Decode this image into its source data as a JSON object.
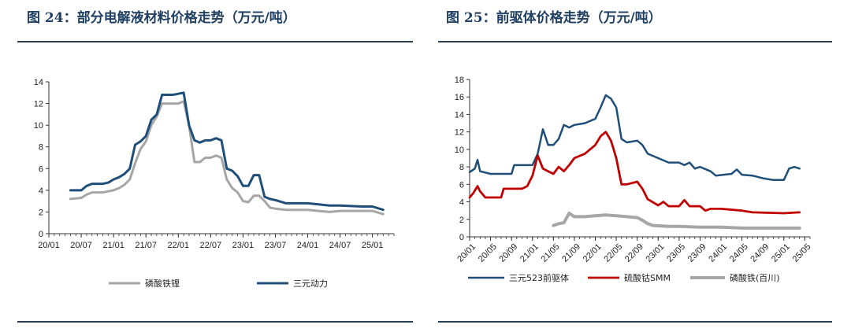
{
  "figures": {
    "left_title": "图 24：部分电解液材料价格走势（万元/吨）",
    "right_title": "图 25：前驱体价格走势（万元/吨）"
  },
  "colors": {
    "navy": "#1f4e79",
    "gray": "#a6a6a6",
    "red": "#c00000",
    "title": "#1f3f63"
  },
  "chart_data": [
    {
      "type": "line",
      "ylim": [
        0,
        14
      ],
      "yticks": [
        "0",
        "2",
        "4",
        "6",
        "8",
        "10",
        "12",
        "14"
      ],
      "xlim": [
        0,
        64
      ],
      "xtick_labels": [
        "20/01",
        "20/07",
        "21/01",
        "21/07",
        "22/01",
        "22/07",
        "23/01",
        "23/07",
        "24/01",
        "24/07",
        "25/01"
      ],
      "xtick_positions": [
        0,
        6,
        12,
        18,
        24,
        30,
        36,
        42,
        48,
        54,
        60
      ],
      "grid": false,
      "legend_position": "bottom",
      "series": [
        {
          "name": "磷酸铁锂",
          "color": "#a6a6a6",
          "points": [
            [
              4,
              3.2
            ],
            [
              6,
              3.3
            ],
            [
              7,
              3.6
            ],
            [
              8,
              3.8
            ],
            [
              10,
              3.8
            ],
            [
              11,
              3.9
            ],
            [
              12,
              4.0
            ],
            [
              13,
              4.2
            ],
            [
              14,
              4.5
            ],
            [
              15,
              5.0
            ],
            [
              16,
              6.5
            ],
            [
              17,
              7.8
            ],
            [
              18,
              8.5
            ],
            [
              19,
              10.0
            ],
            [
              20,
              10.8
            ],
            [
              21,
              12.0
            ],
            [
              22,
              12.0
            ],
            [
              23,
              12.0
            ],
            [
              24,
              12.0
            ],
            [
              25,
              12.2
            ],
            [
              26,
              10.0
            ],
            [
              27,
              6.6
            ],
            [
              28,
              6.6
            ],
            [
              29,
              7.0
            ],
            [
              30,
              7.0
            ],
            [
              31,
              7.2
            ],
            [
              32,
              7.0
            ],
            [
              33,
              5.0
            ],
            [
              34,
              4.2
            ],
            [
              35,
              3.8
            ],
            [
              36,
              3.0
            ],
            [
              37,
              2.9
            ],
            [
              38,
              3.5
            ],
            [
              39,
              3.5
            ],
            [
              40,
              3.0
            ],
            [
              41,
              2.4
            ],
            [
              42,
              2.3
            ],
            [
              44,
              2.2
            ],
            [
              48,
              2.2
            ],
            [
              50,
              2.1
            ],
            [
              52,
              2.0
            ],
            [
              54,
              2.1
            ],
            [
              58,
              2.1
            ],
            [
              60,
              2.1
            ],
            [
              62,
              1.8
            ]
          ]
        },
        {
          "name": "三元动力",
          "color": "#1f4e79",
          "points": [
            [
              4,
              4.0
            ],
            [
              6,
              4.0
            ],
            [
              7,
              4.4
            ],
            [
              8,
              4.6
            ],
            [
              10,
              4.6
            ],
            [
              11,
              4.7
            ],
            [
              12,
              5.0
            ],
            [
              13,
              5.2
            ],
            [
              14,
              5.5
            ],
            [
              15,
              6.0
            ],
            [
              16,
              8.2
            ],
            [
              17,
              8.5
            ],
            [
              18,
              9.0
            ],
            [
              19,
              10.5
            ],
            [
              20,
              11.0
            ],
            [
              21,
              12.8
            ],
            [
              22,
              12.8
            ],
            [
              23,
              12.8
            ],
            [
              24,
              12.9
            ],
            [
              25,
              13.0
            ],
            [
              26,
              10.0
            ],
            [
              27,
              8.6
            ],
            [
              28,
              8.4
            ],
            [
              29,
              8.6
            ],
            [
              30,
              8.6
            ],
            [
              31,
              8.8
            ],
            [
              32,
              8.6
            ],
            [
              33,
              6.0
            ],
            [
              34,
              5.8
            ],
            [
              35,
              5.3
            ],
            [
              36,
              4.4
            ],
            [
              37,
              4.4
            ],
            [
              38,
              5.4
            ],
            [
              39,
              5.4
            ],
            [
              40,
              3.4
            ],
            [
              41,
              3.2
            ],
            [
              42,
              3.1
            ],
            [
              44,
              2.8
            ],
            [
              48,
              2.8
            ],
            [
              50,
              2.7
            ],
            [
              52,
              2.6
            ],
            [
              54,
              2.6
            ],
            [
              58,
              2.5
            ],
            [
              60,
              2.5
            ],
            [
              62,
              2.2
            ]
          ]
        }
      ]
    },
    {
      "type": "line",
      "ylim": [
        0,
        18
      ],
      "yticks": [
        "0",
        "2",
        "4",
        "6",
        "8",
        "10",
        "12",
        "14",
        "16",
        "18"
      ],
      "xlim": [
        0,
        65
      ],
      "xtick_labels": [
        "20/01",
        "20/05",
        "20/09",
        "21/01",
        "21/05",
        "21/09",
        "22/01",
        "22/05",
        "22/09",
        "23/01",
        "23/05",
        "23/09",
        "24/01",
        "24/05",
        "24/09",
        "25/01",
        "25/05"
      ],
      "xtick_positions": [
        0,
        4,
        8,
        12,
        16,
        20,
        24,
        28,
        32,
        36,
        40,
        44,
        48,
        52,
        56,
        60,
        64
      ],
      "grid": false,
      "legend_position": "bottom",
      "series": [
        {
          "name": "三元523前驱体",
          "color": "#1f4e79",
          "points": [
            [
              0,
              7.4
            ],
            [
              1,
              7.8
            ],
            [
              1.5,
              8.8
            ],
            [
              2,
              7.5
            ],
            [
              4,
              7.2
            ],
            [
              8,
              7.2
            ],
            [
              8.5,
              8.2
            ],
            [
              10,
              8.2
            ],
            [
              12,
              8.2
            ],
            [
              13,
              9.5
            ],
            [
              14,
              12.3
            ],
            [
              15,
              10.5
            ],
            [
              16,
              10.5
            ],
            [
              17,
              11.2
            ],
            [
              18,
              12.8
            ],
            [
              19,
              12.5
            ],
            [
              20,
              12.8
            ],
            [
              22,
              13.0
            ],
            [
              24,
              13.5
            ],
            [
              25,
              14.8
            ],
            [
              26,
              16.2
            ],
            [
              27,
              15.8
            ],
            [
              28,
              14.8
            ],
            [
              29,
              11.2
            ],
            [
              30,
              10.8
            ],
            [
              32,
              11.0
            ],
            [
              33,
              10.5
            ],
            [
              34,
              9.5
            ],
            [
              36,
              9.0
            ],
            [
              38,
              8.5
            ],
            [
              40,
              8.5
            ],
            [
              41,
              8.2
            ],
            [
              42,
              8.5
            ],
            [
              43,
              7.8
            ],
            [
              44,
              8.0
            ],
            [
              46,
              7.5
            ],
            [
              47,
              7.0
            ],
            [
              50,
              7.2
            ],
            [
              51,
              7.7
            ],
            [
              52,
              7.1
            ],
            [
              54,
              7.0
            ],
            [
              56,
              6.7
            ],
            [
              58,
              6.5
            ],
            [
              60,
              6.5
            ],
            [
              61,
              7.8
            ],
            [
              62,
              8.0
            ],
            [
              63,
              7.8
            ]
          ]
        },
        {
          "name": "硫酸钴SMM",
          "color": "#c00000",
          "points": [
            [
              0,
              4.5
            ],
            [
              0.7,
              5.0
            ],
            [
              1.5,
              5.8
            ],
            [
              2,
              5.2
            ],
            [
              3,
              4.5
            ],
            [
              4,
              4.5
            ],
            [
              6,
              4.5
            ],
            [
              6.5,
              5.5
            ],
            [
              10,
              5.5
            ],
            [
              11,
              5.8
            ],
            [
              12,
              7.0
            ],
            [
              13,
              9.3
            ],
            [
              14,
              7.8
            ],
            [
              15,
              7.5
            ],
            [
              16,
              7.2
            ],
            [
              17,
              8.0
            ],
            [
              18,
              7.5
            ],
            [
              19,
              8.2
            ],
            [
              20,
              9.0
            ],
            [
              22,
              9.5
            ],
            [
              24,
              10.5
            ],
            [
              25,
              11.5
            ],
            [
              26,
              12.0
            ],
            [
              27,
              11.0
            ],
            [
              28,
              9.0
            ],
            [
              29,
              6.0
            ],
            [
              30,
              6.0
            ],
            [
              32,
              6.3
            ],
            [
              33,
              5.5
            ],
            [
              34,
              4.3
            ],
            [
              36,
              3.6
            ],
            [
              37,
              4.0
            ],
            [
              38,
              3.5
            ],
            [
              40,
              3.5
            ],
            [
              41,
              4.2
            ],
            [
              42,
              3.5
            ],
            [
              44,
              3.5
            ],
            [
              45,
              3.0
            ],
            [
              46,
              3.2
            ],
            [
              48,
              3.2
            ],
            [
              52,
              3.0
            ],
            [
              54,
              2.8
            ],
            [
              60,
              2.7
            ],
            [
              63,
              2.8
            ]
          ]
        },
        {
          "name": "磷酸铁(百川)",
          "color": "#a6a6a6",
          "points": [
            [
              16,
              1.3
            ],
            [
              17,
              1.5
            ],
            [
              18,
              1.6
            ],
            [
              19,
              2.7
            ],
            [
              20,
              2.3
            ],
            [
              22,
              2.3
            ],
            [
              24,
              2.4
            ],
            [
              26,
              2.5
            ],
            [
              28,
              2.4
            ],
            [
              30,
              2.3
            ],
            [
              32,
              2.2
            ],
            [
              33,
              1.9
            ],
            [
              34,
              1.5
            ],
            [
              35,
              1.3
            ],
            [
              38,
              1.2
            ],
            [
              40,
              1.2
            ],
            [
              44,
              1.1
            ],
            [
              48,
              1.1
            ],
            [
              52,
              1.0
            ],
            [
              56,
              1.0
            ],
            [
              60,
              1.0
            ],
            [
              63,
              1.0
            ]
          ]
        }
      ]
    }
  ]
}
